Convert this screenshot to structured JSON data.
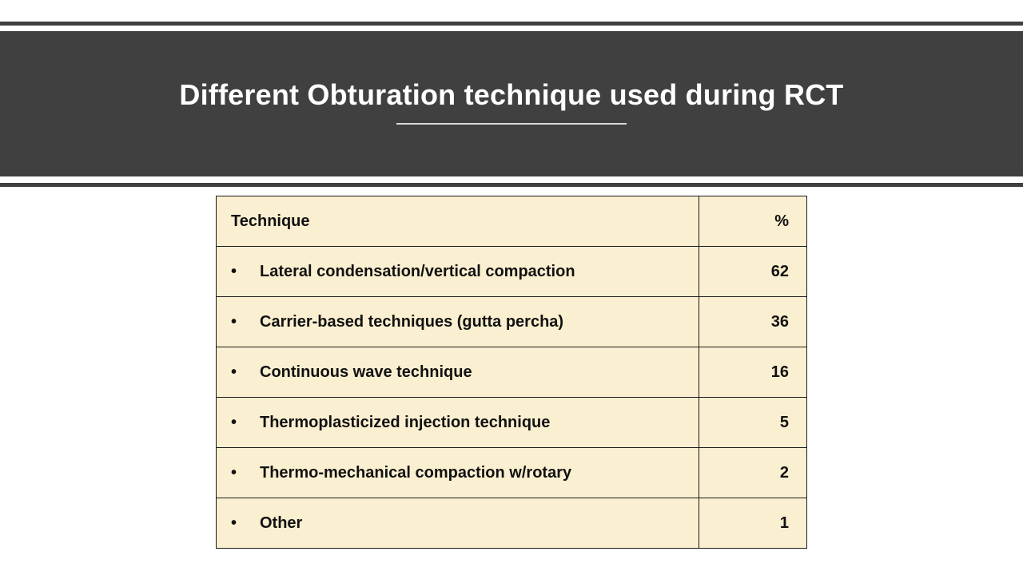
{
  "slide": {
    "title": "Different Obturation technique used during RCT"
  },
  "table": {
    "header": {
      "technique": "Technique",
      "percent": "%"
    },
    "bullet_glyph": "•",
    "rows": [
      {
        "technique": "Lateral condensation/vertical compaction",
        "percent": "62"
      },
      {
        "technique": "Carrier-based techniques (gutta percha)",
        "percent": "36"
      },
      {
        "technique": "Continuous wave technique",
        "percent": "16"
      },
      {
        "technique": "Thermoplasticized injection technique",
        "percent": "5"
      },
      {
        "technique": "Thermo-mechanical compaction w/rotary",
        "percent": "2"
      },
      {
        "technique": "Other",
        "percent": "1"
      }
    ]
  },
  "colors": {
    "header_band": "#404040",
    "table_fill": "#faefd0",
    "title_text": "#ffffff"
  }
}
